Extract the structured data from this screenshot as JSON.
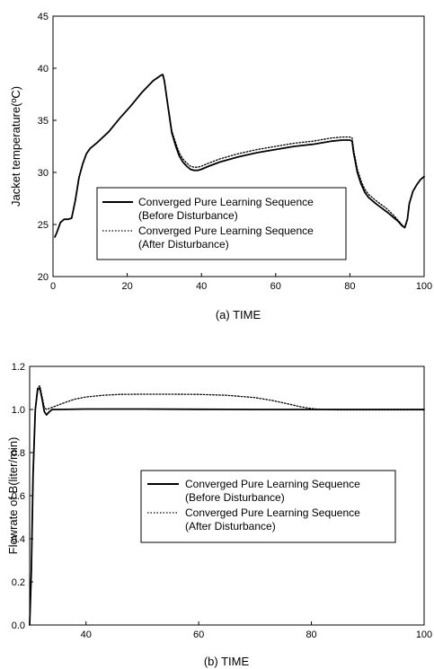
{
  "chart_data": [
    {
      "type": "line",
      "xlabel": "(a) TIME",
      "ylabel": "Jacket temperature(ºC)",
      "xlim": [
        0,
        100
      ],
      "ylim": [
        20,
        45
      ],
      "xticks": [
        "0",
        "20",
        "40",
        "60",
        "80",
        "100"
      ],
      "yticks": [
        "20",
        "25",
        "30",
        "35",
        "40",
        "45"
      ],
      "grid": false,
      "legend_position": "lower-left",
      "series": [
        {
          "name": "Converged Pure Learning Sequence",
          "name_line2": "(Before Disturbance)",
          "style": "solid",
          "x": [
            0.5,
            1,
            2,
            3,
            4,
            5,
            6,
            7,
            8,
            9,
            10,
            12,
            15,
            18,
            21,
            24,
            27,
            29,
            29.6,
            30,
            31,
            32,
            33,
            34,
            35,
            36,
            37,
            38,
            39,
            40,
            42,
            45,
            50,
            55,
            60,
            65,
            70,
            75,
            78,
            80,
            80.6,
            81,
            82,
            83,
            84,
            85,
            87,
            90,
            92,
            93,
            94,
            94.8,
            95.5,
            96,
            97,
            98,
            99,
            100
          ],
          "y": [
            23.8,
            24.2,
            25.2,
            25.5,
            25.5,
            25.6,
            27.3,
            29.5,
            30.8,
            31.8,
            32.3,
            32.9,
            33.9,
            35.2,
            36.4,
            37.7,
            38.8,
            39.3,
            39.4,
            38.8,
            36.3,
            33.8,
            32.6,
            31.6,
            31.0,
            30.6,
            30.3,
            30.2,
            30.2,
            30.3,
            30.6,
            31.0,
            31.5,
            31.9,
            32.2,
            32.5,
            32.7,
            33.0,
            33.1,
            33.1,
            33.0,
            31.9,
            30.0,
            28.9,
            28.1,
            27.6,
            27.0,
            26.2,
            25.6,
            25.3,
            24.9,
            24.7,
            25.5,
            27.0,
            28.2,
            28.8,
            29.3,
            29.6
          ]
        },
        {
          "name": "Converged Pure Learning Sequence",
          "name_line2": "(After Disturbance)",
          "style": "dotted",
          "x": [
            0.5,
            1,
            2,
            3,
            4,
            5,
            6,
            7,
            8,
            9,
            10,
            12,
            15,
            18,
            21,
            24,
            27,
            29,
            29.6,
            30,
            31,
            32,
            33,
            34,
            35,
            36,
            37,
            38,
            39,
            40,
            42,
            45,
            50,
            55,
            60,
            65,
            70,
            75,
            78,
            80,
            80.6,
            81,
            82,
            83,
            84,
            85,
            87,
            90,
            92,
            93,
            94,
            94.8,
            95.5,
            96,
            97,
            98,
            99,
            100
          ],
          "y": [
            23.8,
            24.2,
            25.2,
            25.5,
            25.5,
            25.6,
            27.3,
            29.5,
            30.8,
            31.8,
            32.3,
            32.9,
            33.9,
            35.2,
            36.4,
            37.7,
            38.8,
            39.3,
            39.4,
            38.8,
            36.4,
            34.0,
            32.9,
            31.9,
            31.3,
            30.9,
            30.6,
            30.5,
            30.5,
            30.6,
            30.9,
            31.3,
            31.8,
            32.2,
            32.5,
            32.8,
            33.0,
            33.3,
            33.4,
            33.4,
            33.3,
            32.2,
            30.3,
            29.2,
            28.4,
            27.9,
            27.3,
            26.5,
            25.8,
            25.4,
            25.0,
            24.7,
            25.5,
            27.0,
            28.2,
            28.8,
            29.3,
            29.6
          ]
        }
      ]
    },
    {
      "type": "line",
      "xlabel": "(b) TIME",
      "ylabel": "Flowrate of B(liter/min)",
      "xlim": [
        30,
        100
      ],
      "ylim": [
        0,
        1.2
      ],
      "xticks": [
        "40",
        "60",
        "80",
        "100"
      ],
      "yticks": [
        "0.0",
        "0.2",
        "0.4",
        "0.6",
        "0.8",
        "1.0",
        "1.2"
      ],
      "grid": false,
      "legend_position": "center-right",
      "series": [
        {
          "name": "Converged Pure Learning Sequence",
          "name_line2": "(Before Disturbance)",
          "style": "solid",
          "x": [
            30,
            30.3,
            30.6,
            31,
            31.4,
            31.8,
            32.2,
            32.6,
            33,
            33.5,
            34,
            35,
            40,
            50,
            60,
            70,
            80,
            90,
            100
          ],
          "y": [
            0.0,
            0.25,
            0.7,
            1.0,
            1.09,
            1.1,
            1.05,
            0.99,
            0.975,
            0.99,
            1.0,
            1.0,
            1.002,
            1.002,
            1.001,
            1.0,
            1.0,
            1.0,
            1.0
          ]
        },
        {
          "name": "Converged Pure Learning Sequence",
          "name_line2": "(After Disturbance)",
          "style": "dotted",
          "x": [
            30,
            30.3,
            30.6,
            31,
            31.4,
            31.8,
            32.2,
            32.6,
            33,
            34,
            36,
            38,
            40,
            43,
            46,
            50,
            55,
            60,
            65,
            70,
            73,
            76,
            78,
            80,
            82,
            85,
            90,
            95,
            100
          ],
          "y": [
            0.0,
            0.25,
            0.7,
            1.0,
            1.1,
            1.11,
            1.06,
            1.01,
            1.0,
            1.01,
            1.03,
            1.048,
            1.058,
            1.066,
            1.07,
            1.071,
            1.071,
            1.07,
            1.066,
            1.055,
            1.042,
            1.025,
            1.013,
            1.004,
            1.0,
            0.998,
            0.998,
            0.998,
            0.998
          ]
        }
      ]
    }
  ]
}
